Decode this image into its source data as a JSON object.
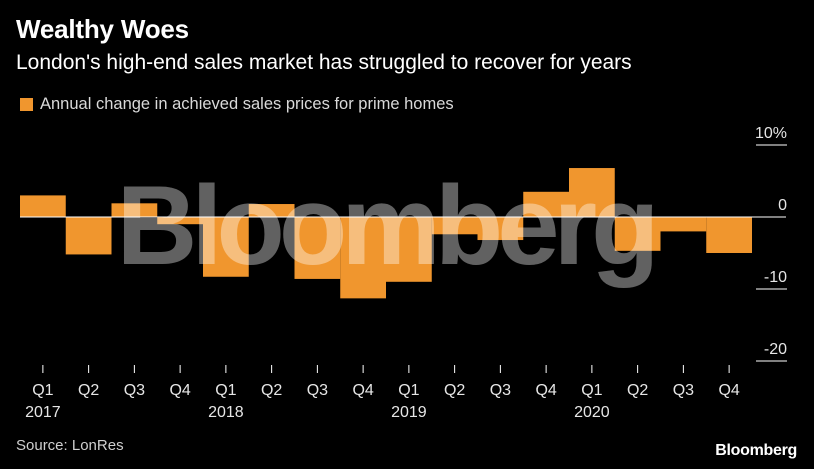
{
  "header": {
    "title": "Wealthy Woes",
    "subtitle": "London's high-end sales market has struggled to recover for years"
  },
  "legend": {
    "label": "Annual change in achieved sales prices for prime homes",
    "color": "#f0962e"
  },
  "footer": {
    "source": "Source: LonRes",
    "brand": "Bloomberg"
  },
  "watermark": "Bloomberg",
  "chart_data": {
    "type": "bar",
    "title": "Wealthy Woes",
    "subtitle": "London's high-end sales market has struggled to recover for years",
    "xlabel": "",
    "ylabel": "",
    "categories": [
      "Q1 2017",
      "Q2 2017",
      "Q3 2017",
      "Q4 2017",
      "Q1 2018",
      "Q2 2018",
      "Q3 2018",
      "Q4 2018",
      "Q1 2019",
      "Q2 2019",
      "Q3 2019",
      "Q4 2019",
      "Q1 2020",
      "Q2 2020",
      "Q3 2020",
      "Q4 2020"
    ],
    "quarter_labels": [
      "Q1",
      "Q2",
      "Q3",
      "Q4",
      "Q1",
      "Q2",
      "Q3",
      "Q4",
      "Q1",
      "Q2",
      "Q3",
      "Q4",
      "Q1",
      "Q2",
      "Q3",
      "Q4"
    ],
    "year_labels": [
      {
        "index": 0,
        "label": "2017"
      },
      {
        "index": 4,
        "label": "2018"
      },
      {
        "index": 8,
        "label": "2019"
      },
      {
        "index": 12,
        "label": "2020"
      }
    ],
    "series": [
      {
        "name": "Annual change in achieved sales prices for prime homes",
        "color": "#f0962e",
        "values": [
          3.0,
          -5.2,
          1.9,
          -1.0,
          -8.3,
          1.8,
          -8.6,
          -11.3,
          -9.0,
          -2.4,
          -3.2,
          3.5,
          6.8,
          -4.7,
          -2.0,
          -5.0
        ]
      }
    ],
    "ylim": [
      -20,
      10
    ],
    "yticks": [
      10,
      0,
      -10,
      -20
    ],
    "ytick_labels": [
      "10%",
      "0",
      "-10",
      "-20"
    ],
    "grid": false,
    "legend_position": "top-left"
  }
}
